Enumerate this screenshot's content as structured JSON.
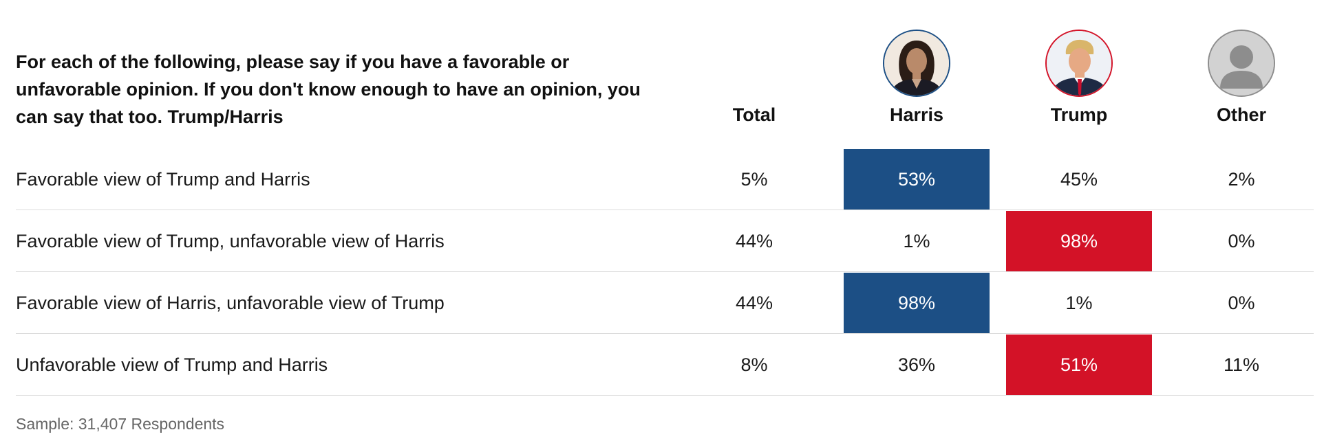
{
  "question": "For each of the following, please say if you have a favorable or unfavorable opinion. If you don't know enough to have an opinion, you can say that too. Trump/Harris",
  "columns": [
    {
      "label": "Total",
      "avatar": null
    },
    {
      "label": "Harris",
      "avatar": "harris-photo-icon",
      "color": "#1c4f85"
    },
    {
      "label": "Trump",
      "avatar": "trump-photo-icon",
      "color": "#d31227"
    },
    {
      "label": "Other",
      "avatar": "person-silhouette-icon",
      "color": "#9a9a9a"
    }
  ],
  "rows": [
    {
      "label": "Favorable view of Trump and Harris",
      "values": [
        "5%",
        "53%",
        "45%",
        "2%"
      ],
      "highlight": "harris"
    },
    {
      "label": "Favorable view of Trump, unfavorable view of Harris",
      "values": [
        "44%",
        "1%",
        "98%",
        "0%"
      ],
      "highlight": "trump"
    },
    {
      "label": "Favorable view of Harris, unfavorable view of Trump",
      "values": [
        "44%",
        "98%",
        "1%",
        "0%"
      ],
      "highlight": "harris"
    },
    {
      "label": "Unfavorable view of Trump and Harris",
      "values": [
        "8%",
        "36%",
        "51%",
        "11%"
      ],
      "highlight": "trump"
    }
  ],
  "footer": "Sample: 31,407 Respondents",
  "chart_data": {
    "type": "table",
    "title": "For each of the following, please say if you have a favorable or unfavorable opinion. If you don't know enough to have an opinion, you can say that too. Trump/Harris",
    "columns": [
      "Total",
      "Harris",
      "Trump",
      "Other"
    ],
    "rows": [
      "Favorable view of Trump and Harris",
      "Favorable view of Trump, unfavorable view of Harris",
      "Favorable view of Harris, unfavorable view of Trump",
      "Unfavorable view of Trump and Harris"
    ],
    "values": [
      [
        5,
        53,
        45,
        2
      ],
      [
        44,
        1,
        98,
        0
      ],
      [
        44,
        98,
        1,
        0
      ],
      [
        8,
        36,
        51,
        11
      ]
    ],
    "unit": "%",
    "highlight_colors": {
      "Harris": "#1c4f85",
      "Trump": "#d31227"
    }
  }
}
